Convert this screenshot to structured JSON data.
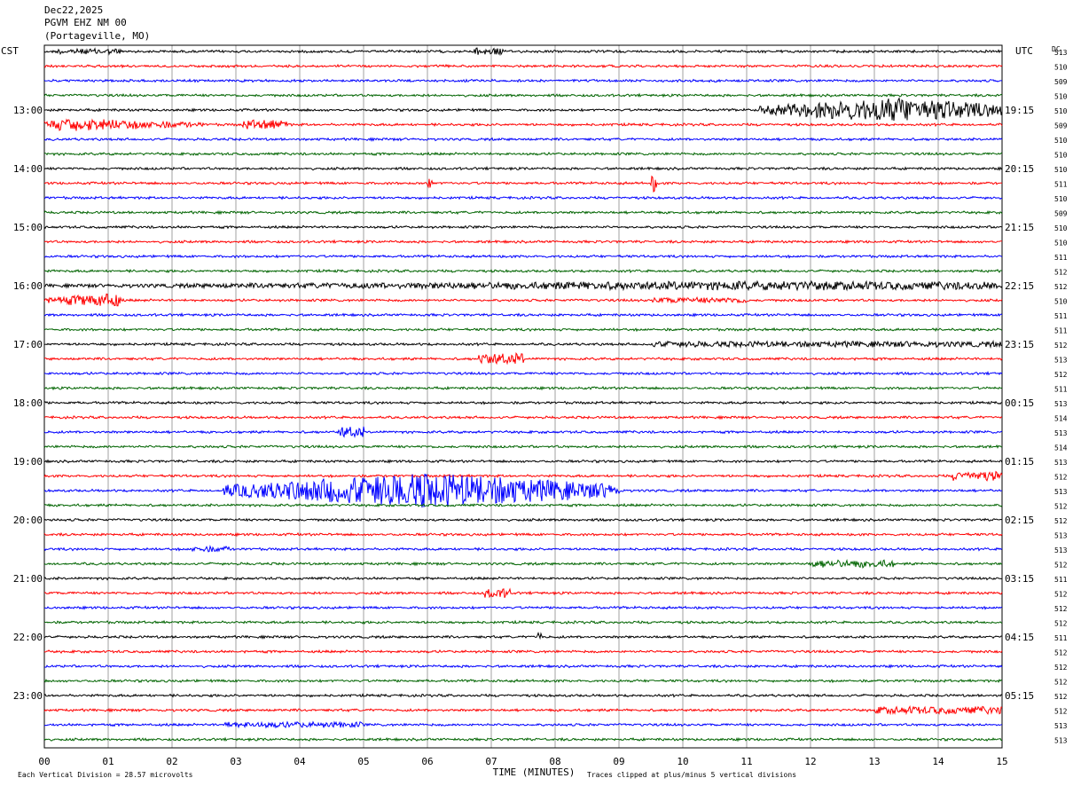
{
  "header": {
    "date": "Dec22,2025",
    "station": "PGVM EHZ NM 00",
    "location": "(Portageville, MO)"
  },
  "labels": {
    "left_tz": "CST",
    "right_tz": "UTC",
    "dc_label": "DC",
    "xlabel": "TIME (MINUTES)",
    "footer_left": "Each Vertical Division =   28.57 microvolts",
    "footer_right": "Traces clipped at plus/minus 5 vertical divisions"
  },
  "colors": {
    "black": "#000000",
    "red": "#ff0000",
    "blue": "#0000ff",
    "green": "#006400",
    "grid": "#a0a0a0"
  },
  "chart_data": {
    "type": "line",
    "subtype": "helicorder",
    "xlim": [
      0,
      15
    ],
    "x_ticks": [
      "00",
      "01",
      "02",
      "03",
      "04",
      "05",
      "06",
      "07",
      "08",
      "09",
      "10",
      "11",
      "12",
      "13",
      "14",
      "15"
    ],
    "left_hour_labels": [
      "13:00",
      "14:00",
      "15:00",
      "16:00",
      "17:00",
      "18:00",
      "19:00",
      "20:00",
      "21:00",
      "22:00",
      "23:00"
    ],
    "right_hour_labels": [
      "19:15",
      "20:15",
      "21:15",
      "22:15",
      "23:15",
      "00:15",
      "01:15",
      "02:15",
      "03:15",
      "04:15",
      "05:15"
    ],
    "trace_color_cycle": [
      "black",
      "red",
      "blue",
      "green"
    ],
    "dc_values": [
      "513",
      "510",
      "509",
      "510",
      "510",
      "509",
      "510",
      "510",
      "510",
      "511",
      "510",
      "509",
      "510",
      "510",
      "511",
      "512",
      "512",
      "510",
      "511",
      "511",
      "512",
      "513",
      "512",
      "511",
      "513",
      "514",
      "513",
      "514",
      "513",
      "512",
      "513",
      "512",
      "512",
      "513",
      "513",
      "512",
      "511",
      "512",
      "512",
      "512",
      "511",
      "512",
      "512",
      "512",
      "512",
      "512",
      "513",
      "513"
    ],
    "events": [
      {
        "trace": 0,
        "start_min": 6.7,
        "end_min": 7.2,
        "amp": 4
      },
      {
        "trace": 0,
        "start_min": 0.2,
        "end_min": 1.2,
        "amp": 3
      },
      {
        "trace": 4,
        "start_min": 11.2,
        "end_min": 15,
        "amp": 14,
        "peak_min": 13.3
      },
      {
        "trace": 5,
        "start_min": 0,
        "end_min": 2.5,
        "amp": 7,
        "peak_min": 0.5
      },
      {
        "trace": 5,
        "start_min": 3.1,
        "end_min": 3.8,
        "amp": 5
      },
      {
        "trace": 9,
        "start_min": 6.0,
        "end_min": 6.1,
        "amp": 5
      },
      {
        "trace": 9,
        "start_min": 9.5,
        "end_min": 9.6,
        "amp": 10
      },
      {
        "trace": 16,
        "start_min": 0,
        "end_min": 15,
        "amp": 5,
        "peak_min": 11.5
      },
      {
        "trace": 17,
        "start_min": 0,
        "end_min": 1.2,
        "amp": 8,
        "peak_min": 0.9
      },
      {
        "trace": 17,
        "start_min": 9.5,
        "end_min": 11.0,
        "amp": 3
      },
      {
        "trace": 20,
        "start_min": 9.5,
        "end_min": 15,
        "amp": 3
      },
      {
        "trace": 21,
        "start_min": 6.8,
        "end_min": 7.5,
        "amp": 6
      },
      {
        "trace": 26,
        "start_min": 4.6,
        "end_min": 5.0,
        "amp": 6
      },
      {
        "trace": 29,
        "start_min": 14.2,
        "end_min": 15,
        "amp": 5
      },
      {
        "trace": 30,
        "start_min": 2.8,
        "end_min": 9.0,
        "amp": 20,
        "peak_min": 6.0
      },
      {
        "trace": 34,
        "start_min": 2.3,
        "end_min": 2.9,
        "amp": 3
      },
      {
        "trace": 35,
        "start_min": 12.0,
        "end_min": 13.3,
        "amp": 4
      },
      {
        "trace": 37,
        "start_min": 6.9,
        "end_min": 7.3,
        "amp": 5
      },
      {
        "trace": 40,
        "start_min": 7.7,
        "end_min": 7.8,
        "amp": 5
      },
      {
        "trace": 45,
        "start_min": 13.0,
        "end_min": 15,
        "amp": 4
      },
      {
        "trace": 46,
        "start_min": 2.8,
        "end_min": 5.0,
        "amp": 3
      }
    ]
  }
}
